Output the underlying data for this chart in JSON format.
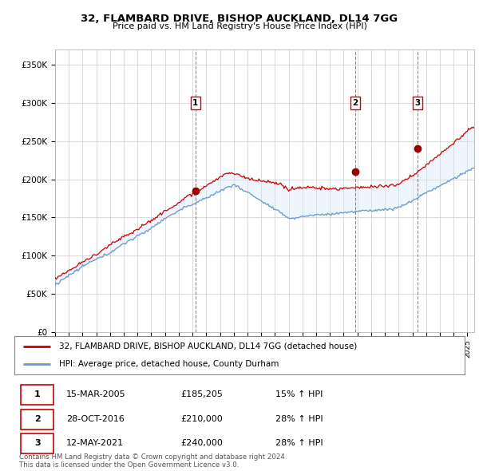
{
  "title1": "32, FLAMBARD DRIVE, BISHOP AUCKLAND, DL14 7GG",
  "title2": "Price paid vs. HM Land Registry's House Price Index (HPI)",
  "ylabel_ticks": [
    "£0",
    "£50K",
    "£100K",
    "£150K",
    "£200K",
    "£250K",
    "£300K",
    "£350K"
  ],
  "ytick_values": [
    0,
    50000,
    100000,
    150000,
    200000,
    250000,
    300000,
    350000
  ],
  "ylim": [
    0,
    370000
  ],
  "xlim_start": 1995.0,
  "xlim_end": 2025.5,
  "sale_dates": [
    2005.21,
    2016.83,
    2021.37
  ],
  "sale_prices": [
    185205,
    210000,
    240000
  ],
  "sale_labels": [
    "1",
    "2",
    "3"
  ],
  "vline_color": "#cc0000",
  "hpi_line_color": "#6699cc",
  "price_line_color": "#cc0000",
  "fill_color": "#d0e4f7",
  "legend_label_price": "32, FLAMBARD DRIVE, BISHOP AUCKLAND, DL14 7GG (detached house)",
  "legend_label_hpi": "HPI: Average price, detached house, County Durham",
  "table_rows": [
    [
      "1",
      "15-MAR-2005",
      "£185,205",
      "15% ↑ HPI"
    ],
    [
      "2",
      "28-OCT-2016",
      "£210,000",
      "28% ↑ HPI"
    ],
    [
      "3",
      "12-MAY-2021",
      "£240,000",
      "28% ↑ HPI"
    ]
  ],
  "footer": "Contains HM Land Registry data © Crown copyright and database right 2024.\nThis data is licensed under the Open Government Licence v3.0.",
  "plot_bg_color": "#ffffff",
  "grid_color": "#cccccc"
}
